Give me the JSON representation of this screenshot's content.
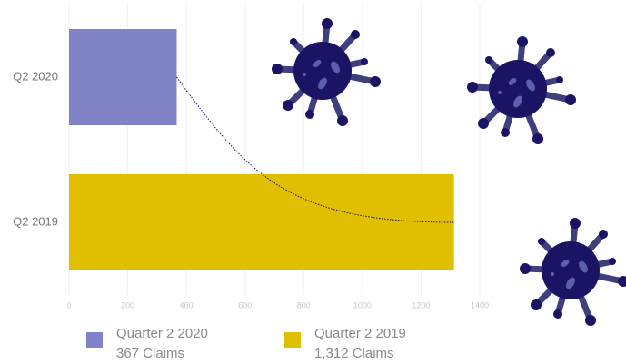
{
  "chart_data": {
    "type": "bar",
    "orientation": "horizontal",
    "categories": [
      "Q2 2020",
      "Q2 2019"
    ],
    "values": [
      367,
      1312
    ],
    "value_labels": [
      "367 Claims",
      "1,312 Claims"
    ],
    "legend": [
      "Quarter 2 2020",
      "Quarter 2 2019"
    ],
    "colors": [
      "#8083c8",
      "#e0be00"
    ],
    "xlim": [
      0,
      1400
    ],
    "xticks": [
      0,
      200,
      400,
      600,
      800,
      1000,
      1200,
      1400
    ],
    "grid": true
  }
}
